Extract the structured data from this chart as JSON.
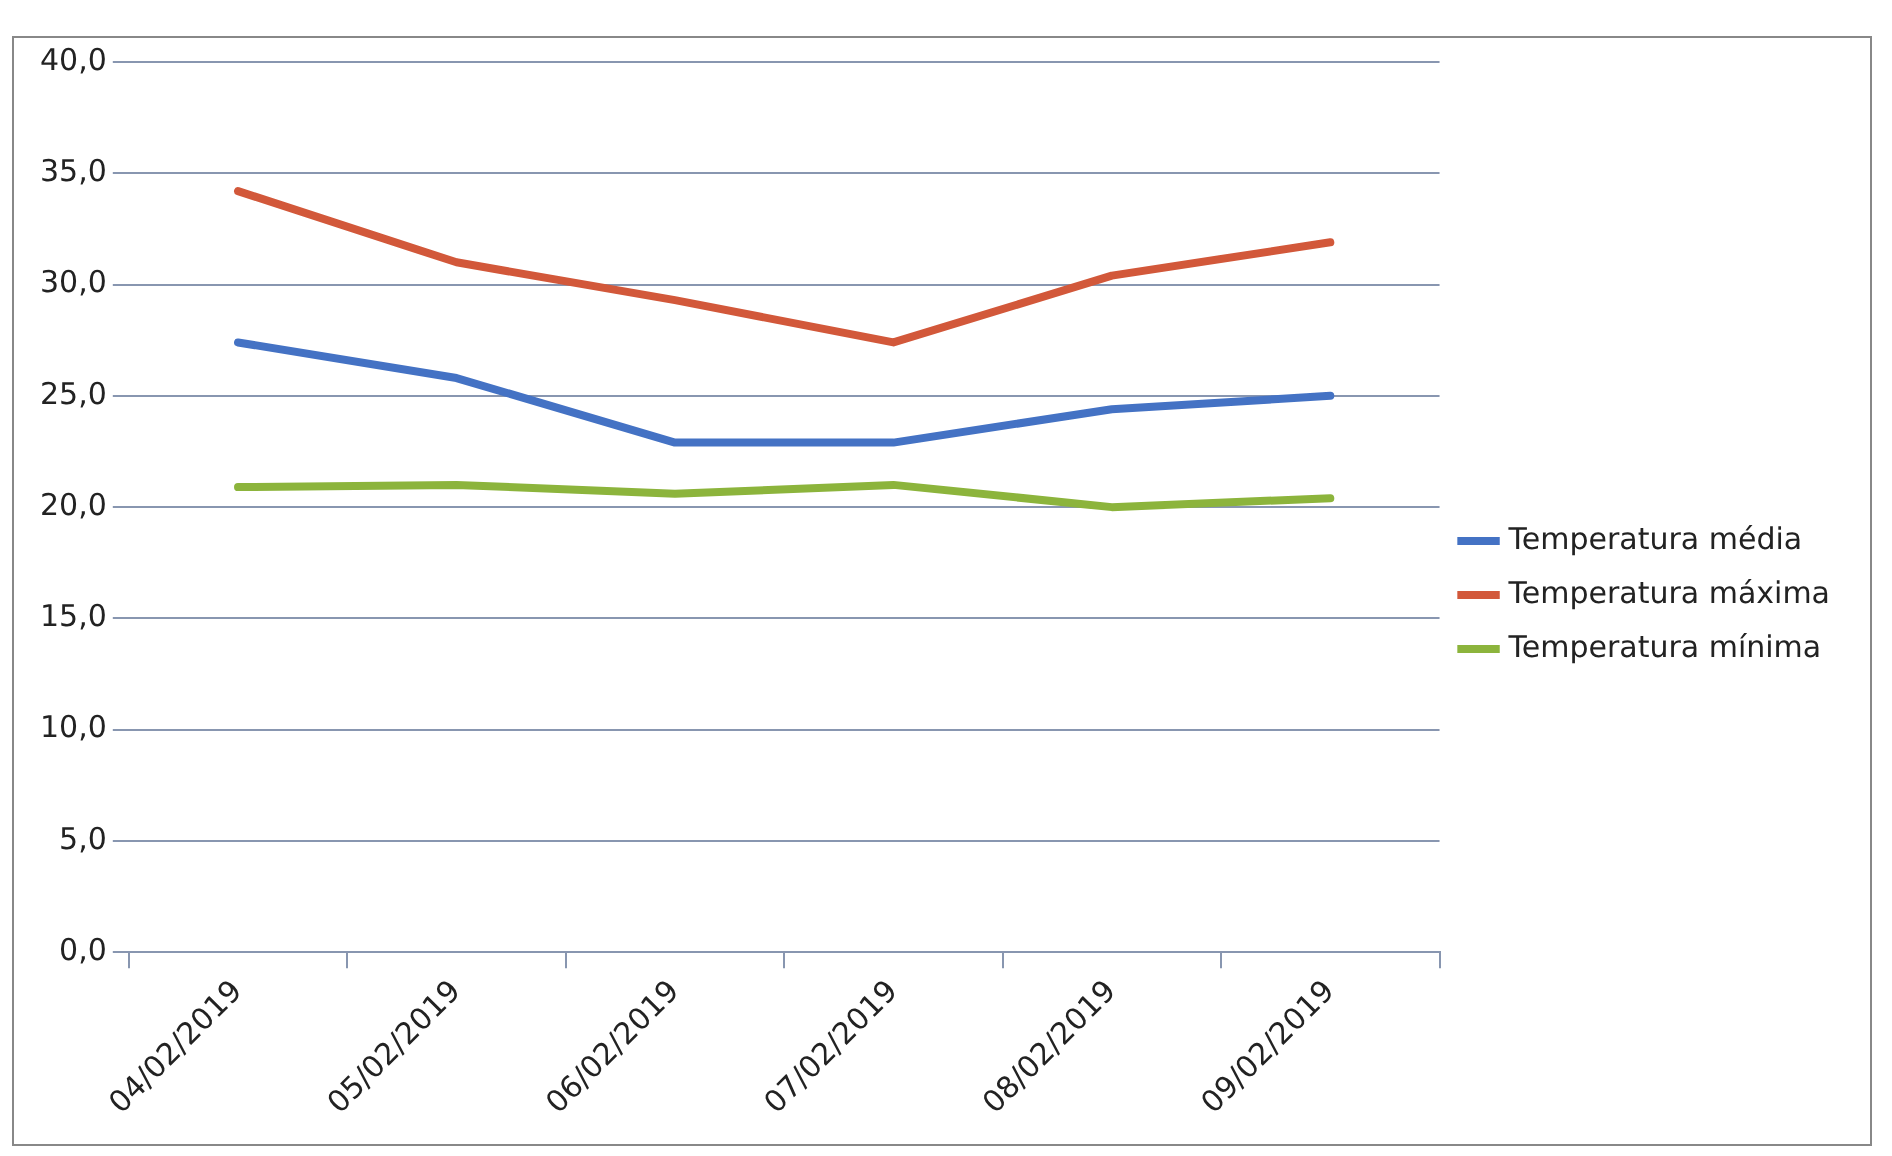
{
  "chart_data": {
    "type": "line",
    "categories": [
      "04/02/2019",
      "05/02/2019",
      "06/02/2019",
      "07/02/2019",
      "08/02/2019",
      "09/02/2019"
    ],
    "series": [
      {
        "name": "Temperatura média",
        "color": "#4472c4",
        "values": [
          27.4,
          25.8,
          22.9,
          22.9,
          24.4,
          25.0
        ]
      },
      {
        "name": "Temperatura máxima",
        "color": "#d2583a",
        "values": [
          34.2,
          31.0,
          29.3,
          27.4,
          30.4,
          31.9
        ]
      },
      {
        "name": "Temperatura mínima",
        "color": "#8cb43c",
        "values": [
          20.9,
          21.0,
          20.6,
          21.0,
          20.0,
          20.4
        ]
      }
    ],
    "ylim": [
      0,
      40
    ],
    "yticks": [
      {
        "value": 0,
        "label": "0,0"
      },
      {
        "value": 5,
        "label": "5,0"
      },
      {
        "value": 10,
        "label": "10,0"
      },
      {
        "value": 15,
        "label": "15,0"
      },
      {
        "value": 20,
        "label": "20,0"
      },
      {
        "value": 25,
        "label": "25,0"
      },
      {
        "value": 30,
        "label": "30,0"
      },
      {
        "value": 35,
        "label": "35,0"
      },
      {
        "value": 40,
        "label": "40,0"
      }
    ],
    "grid": "y",
    "legend": "right",
    "marker": "none",
    "line_style": "solid"
  }
}
